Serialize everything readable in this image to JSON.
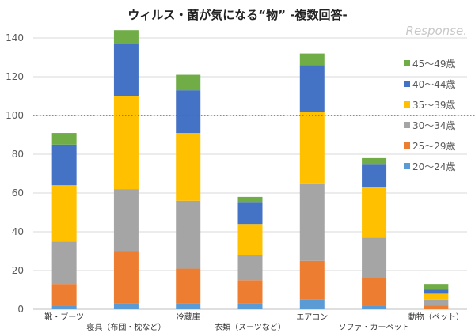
{
  "chart_data": {
    "type": "bar",
    "stacked": true,
    "title": "ウィルス・菌が気になる“物” -複数回答-",
    "xlabel": "",
    "ylabel": "",
    "ylim": [
      0,
      140
    ],
    "yticks": [
      0,
      20,
      40,
      60,
      80,
      100,
      120,
      140
    ],
    "grid": true,
    "reference_line": {
      "y": 100,
      "style": "dotted",
      "color": "#2E75B6"
    },
    "legend_position": "right",
    "categories": [
      "靴・ブーツ",
      "寝具（布団・枕など）",
      "冷蔵庫",
      "衣類（スーツなど）",
      "エアコン",
      "ソファ・カーペット",
      "動物（ペット）"
    ],
    "series": [
      {
        "name": "20～24歳",
        "color": "#5B9BD5",
        "values": [
          2,
          3,
          3,
          3,
          5,
          2,
          0
        ]
      },
      {
        "name": "25～29歳",
        "color": "#ED7D31",
        "values": [
          11,
          27,
          18,
          12,
          20,
          14,
          2
        ]
      },
      {
        "name": "30～34歳",
        "color": "#A5A5A5",
        "values": [
          22,
          32,
          35,
          13,
          40,
          21,
          3
        ]
      },
      {
        "name": "35～39歳",
        "color": "#FFC000",
        "values": [
          29,
          48,
          35,
          16,
          37,
          26,
          3
        ]
      },
      {
        "name": "40～44歳",
        "color": "#4472C4",
        "values": [
          21,
          27,
          22,
          11,
          24,
          12,
          2
        ]
      },
      {
        "name": "45～49歳",
        "color": "#70AD47",
        "values": [
          6,
          7,
          8,
          3,
          6,
          3,
          3
        ]
      }
    ]
  },
  "watermark": "Response."
}
